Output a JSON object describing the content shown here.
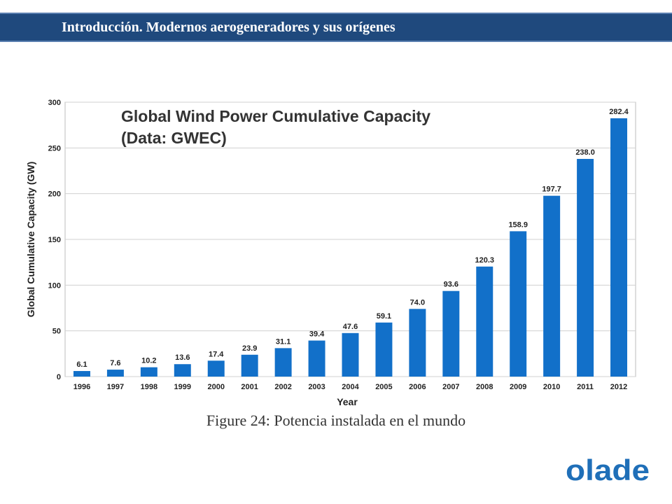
{
  "header": {
    "title": "Introducción. Modernos aerogeneradores y sus orígenes"
  },
  "caption": "Figure 24:  Potencia instalada en el mundo",
  "logo": {
    "text": "olade",
    "color": "#1f6fb8"
  },
  "colors": {
    "header_bg": "#1f497d",
    "bar": "#1270c9",
    "grid": "#d0d0d0"
  },
  "chart_data": {
    "type": "bar",
    "title_line1": "Global Wind Power Cumulative Capacity",
    "title_line2": "(Data: GWEC)",
    "xlabel": "Year",
    "ylabel": "Global Cumulative Capacity (GW)",
    "ylim": [
      0,
      300
    ],
    "yticks": [
      0,
      50,
      100,
      150,
      200,
      250,
      300
    ],
    "grid": true,
    "categories": [
      "1996",
      "1997",
      "1998",
      "1999",
      "2000",
      "2001",
      "2002",
      "2003",
      "2004",
      "2005",
      "2006",
      "2007",
      "2008",
      "2009",
      "2010",
      "2011",
      "2012"
    ],
    "values": [
      6.1,
      7.6,
      10.2,
      13.6,
      17.4,
      23.9,
      31.1,
      39.4,
      47.6,
      59.1,
      74.0,
      93.6,
      120.3,
      158.9,
      197.7,
      238.0,
      282.4
    ],
    "labels": [
      "6.1",
      "7.6",
      "10.2",
      "13.6",
      "17.4",
      "23.9",
      "31.1",
      "39.4",
      "47.6",
      "59.1",
      "74.0",
      "93.6",
      "120.3",
      "158.9",
      "197.7",
      "238.0",
      "282.4"
    ]
  }
}
